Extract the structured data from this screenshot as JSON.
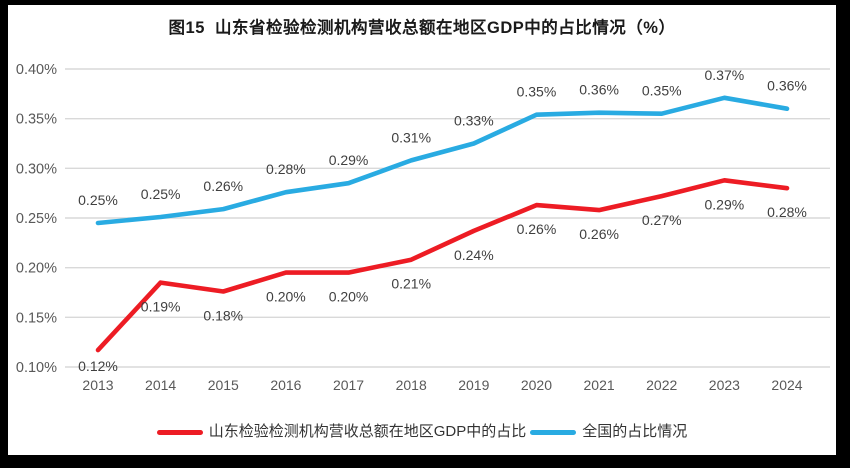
{
  "title": "图15  山东省检验检测机构营收总额在地区GDP中的占比情况（%）",
  "chart_data": {
    "type": "line",
    "title": "图15  山东省检验检测机构营收总额在地区GDP中的占比情况（%）",
    "x": [
      "2013",
      "2014",
      "2015",
      "2016",
      "2017",
      "2018",
      "2019",
      "2020",
      "2021",
      "2022",
      "2023",
      "2024"
    ],
    "series": [
      {
        "name": "山东检验检测机构营收总额在地区GDP中的占比",
        "color": "#ED1C24",
        "values": [
          0.12,
          0.19,
          0.18,
          0.2,
          0.2,
          0.21,
          0.24,
          0.26,
          0.26,
          0.27,
          0.29,
          0.28
        ],
        "labels": [
          "0.12%",
          "0.19%",
          "0.18%",
          "0.20%",
          "0.20%",
          "0.21%",
          "0.24%",
          "0.26%",
          "0.26%",
          "0.27%",
          "0.29%",
          "0.28%"
        ],
        "plot_values": [
          0.117,
          0.185,
          0.176,
          0.195,
          0.195,
          0.208,
          0.237,
          0.263,
          0.258,
          0.272,
          0.288,
          0.28
        ],
        "label_position": "below"
      },
      {
        "name": "全国的占比情况",
        "color": "#29ABE2",
        "values": [
          0.25,
          0.25,
          0.26,
          0.28,
          0.29,
          0.31,
          0.33,
          0.35,
          0.36,
          0.35,
          0.37,
          0.36
        ],
        "labels": [
          "0.25%",
          "0.25%",
          "0.26%",
          "0.28%",
          "0.29%",
          "0.31%",
          "0.33%",
          "0.35%",
          "0.36%",
          "0.35%",
          "0.37%",
          "0.36%"
        ],
        "plot_values": [
          0.245,
          0.251,
          0.259,
          0.276,
          0.285,
          0.308,
          0.325,
          0.354,
          0.356,
          0.355,
          0.371,
          0.36
        ],
        "label_position": "above"
      }
    ],
    "y_axis": {
      "ticks": [
        "0.10%",
        "0.15%",
        "0.20%",
        "0.25%",
        "0.30%",
        "0.35%",
        "0.40%"
      ],
      "min": 0.1,
      "max": 0.4,
      "step": 0.05
    },
    "xlabel": "",
    "ylabel": "",
    "ylim": [
      0.1,
      0.4
    ],
    "grid": true,
    "legend_position": "bottom"
  },
  "style": {
    "grid_color": "#D9D9D9",
    "axis_text_color": "#595959",
    "data_label_color": "#404040",
    "background": "#FFFFFF",
    "frame_color": "#000000"
  }
}
